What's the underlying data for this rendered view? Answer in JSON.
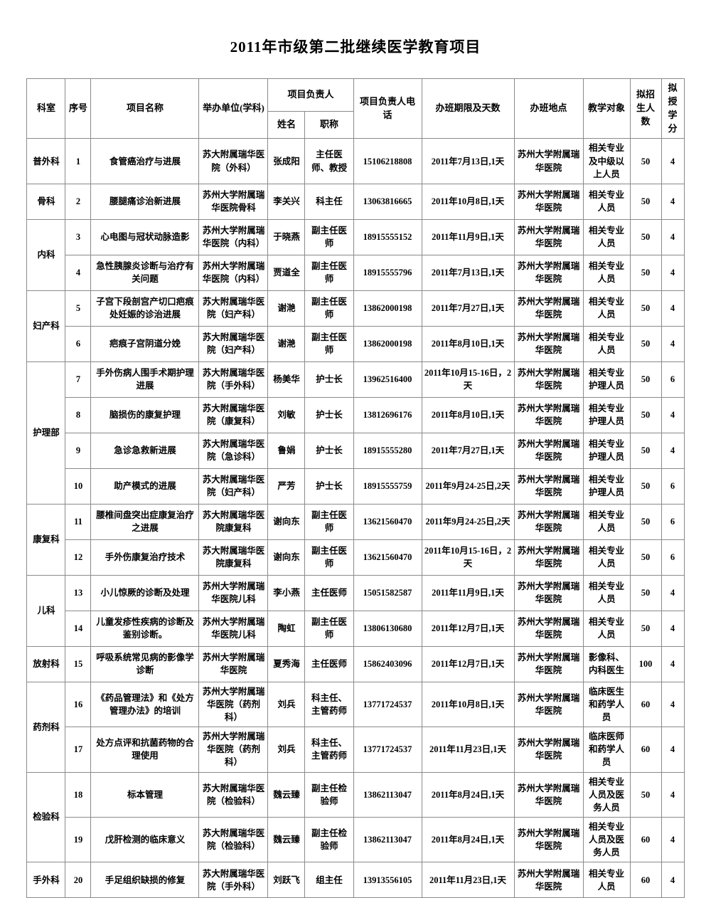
{
  "title": "2011年市级第二批继续医学教育项目",
  "table": {
    "header": {
      "dept": "科室",
      "num": "序号",
      "project": "项目名称",
      "organizer": "举办单位(学科)",
      "leader_group": "项目负责人",
      "leader_name": "姓名",
      "leader_title": "职称",
      "phone": "项目负责人电话",
      "schedule": "办班期限及天数",
      "location": "办班地点",
      "audience": "教学对象",
      "enrollment": "拟招生人数",
      "credits": "拟授学分"
    },
    "rows": [
      {
        "dept": "普外科",
        "dept_rowspan": 1,
        "num": "1",
        "project": "食管癌治疗与进展",
        "organizer": "苏大附属瑞华医院（外科）",
        "name": "张成阳",
        "job_title": "主任医师、教授",
        "phone": "15106218808",
        "schedule": "2011年7月13日,1天",
        "location": "苏州大学附属瑞华医院",
        "audience": "相关专业及中级以上人员",
        "enrollment": "50",
        "credits": "4"
      },
      {
        "dept": "骨科",
        "dept_rowspan": 1,
        "num": "2",
        "project": "腰腿痛诊治新进展",
        "organizer": "苏州大学附属瑞华医院骨科",
        "name": "李关兴",
        "job_title": "科主任",
        "phone": "13063816665",
        "schedule": "2011年10月8日,1天",
        "location": "苏州大学附属瑞华医院",
        "audience": "相关专业人员",
        "enrollment": "50",
        "credits": "4"
      },
      {
        "dept": "内科",
        "dept_rowspan": 2,
        "num": "3",
        "project": "心电图与冠状动脉造影",
        "organizer": "苏州大学附属瑞华医院（内科）",
        "name": "于晓燕",
        "job_title": "副主任医师",
        "phone": "18915555152",
        "schedule": "2011年11月9日,1天",
        "location": "苏州大学附属瑞华医院",
        "audience": "相关专业人员",
        "enrollment": "50",
        "credits": "4"
      },
      {
        "dept": null,
        "num": "4",
        "project": "急性胰腺炎诊断与治疗有关问题",
        "organizer": "苏州大学附属瑞华医院（内科）",
        "name": "贾道全",
        "job_title": "副主任医师",
        "phone": "18915555796",
        "schedule": "2011年7月13日,1天",
        "location": "苏州大学附属瑞华医院",
        "audience": "相关专业人员",
        "enrollment": "50",
        "credits": "4"
      },
      {
        "dept": "妇产科",
        "dept_rowspan": 2,
        "num": "5",
        "project": "子宫下段剖宫产切口疤痕处妊娠的诊治进展",
        "organizer": "苏大附属瑞华医院（妇产科）",
        "name": "谢滟",
        "job_title": "副主任医师",
        "phone": "13862000198",
        "schedule": "2011年7月27日,1天",
        "location": "苏州大学附属瑞华医院",
        "audience": "相关专业人员",
        "enrollment": "50",
        "credits": "4"
      },
      {
        "dept": null,
        "num": "6",
        "project": "疤痕子宫阴道分娩",
        "organizer": "苏大附属瑞华医院（妇产科）",
        "name": "谢滟",
        "job_title": "副主任医师",
        "phone": "13862000198",
        "schedule": "2011年8月10日,1天",
        "location": "苏州大学附属瑞华医院",
        "audience": "相关专业人员",
        "enrollment": "50",
        "credits": "4"
      },
      {
        "dept": "护理部",
        "dept_rowspan": 4,
        "num": "7",
        "project": "手外伤病人围手术期护理进展",
        "organizer": "苏大附属瑞华医院（手外科）",
        "name": "杨美华",
        "job_title": "护士长",
        "phone": "13962516400",
        "schedule": "2011年10月15-16日，2天",
        "location": "苏州大学附属瑞华医院",
        "audience": "相关专业护理人员",
        "enrollment": "50",
        "credits": "6"
      },
      {
        "dept": null,
        "num": "8",
        "project": "脑损伤的康复护理",
        "organizer": "苏大附属瑞华医院（康复科）",
        "name": "刘敏",
        "job_title": "护士长",
        "phone": "13812696176",
        "schedule": "2011年8月10日,1天",
        "location": "苏州大学附属瑞华医院",
        "audience": "相关专业护理人员",
        "enrollment": "50",
        "credits": "4"
      },
      {
        "dept": null,
        "num": "9",
        "project": "急诊急救新进展",
        "organizer": "苏大附属瑞华医院（急诊科）",
        "name": "鲁娟",
        "job_title": "护士长",
        "phone": "18915555280",
        "schedule": "2011年7月27日,1天",
        "location": "苏州大学附属瑞华医院",
        "audience": "相关专业护理人员",
        "enrollment": "50",
        "credits": "4"
      },
      {
        "dept": null,
        "num": "10",
        "project": "助产模式的进展",
        "organizer": "苏大附属瑞华医院（妇产科）",
        "name": "严芳",
        "job_title": "护士长",
        "phone": "18915555759",
        "schedule": "2011年9月24-25日,2天",
        "location": "苏州大学附属瑞华医院",
        "audience": "相关专业护理人员",
        "enrollment": "50",
        "credits": "6"
      },
      {
        "dept": "康复科",
        "dept_rowspan": 2,
        "num": "11",
        "project": "腰椎间盘突出症康复治疗之进展",
        "organizer": "苏大附属瑞华医院康复科",
        "name": "谢向东",
        "job_title": "副主任医师",
        "phone": "13621560470",
        "schedule": "2011年9月24-25日,2天",
        "location": "苏州大学附属瑞华医院",
        "audience": "相关专业人员",
        "enrollment": "50",
        "credits": "6"
      },
      {
        "dept": null,
        "num": "12",
        "project": "手外伤康复治疗技术",
        "organizer": "苏大附属瑞华医院康复科",
        "name": "谢向东",
        "job_title": "副主任医师",
        "phone": "13621560470",
        "schedule": "2011年10月15-16日，2天",
        "location": "苏州大学附属瑞华医院",
        "audience": "相关专业人员",
        "enrollment": "50",
        "credits": "6"
      },
      {
        "dept": "儿科",
        "dept_rowspan": 2,
        "num": "13",
        "project": "小儿惊厥的诊断及处理",
        "organizer": "苏州大学附属瑞华医院儿科",
        "name": "李小燕",
        "job_title": "主任医师",
        "phone": "15051582587",
        "schedule": "2011年11月9日,1天",
        "location": "苏州大学附属瑞华医院",
        "audience": "相关专业人员",
        "enrollment": "50",
        "credits": "4"
      },
      {
        "dept": null,
        "num": "14",
        "project": "儿童发疹性疾病的诊断及鉴别诊断。",
        "organizer": "苏州大学附属瑞华医院儿科",
        "name": "陶虹",
        "job_title": "副主任医师",
        "phone": "13806130680",
        "schedule": "2011年12月7日,1天",
        "location": "苏州大学附属瑞华医院",
        "audience": "相关专业人员",
        "enrollment": "50",
        "credits": "4"
      },
      {
        "dept": "放射科",
        "dept_rowspan": 1,
        "num": "15",
        "project": "呼吸系统常见病的影像学诊断",
        "organizer": "苏州大学附属瑞华医院",
        "name": "夏秀海",
        "job_title": "主任医师",
        "phone": "15862403096",
        "schedule": "2011年12月7日,1天",
        "location": "苏州大学附属瑞华医院",
        "audience": "影像科、内科医生",
        "enrollment": "100",
        "credits": "4"
      },
      {
        "dept": "药剂科",
        "dept_rowspan": 2,
        "num": "16",
        "project": "《药品管理法》和《处方管理办法》的培训",
        "organizer": "苏州大学附属瑞华医院（药剂科）",
        "name": "刘兵",
        "job_title": "科主任、主管药师",
        "phone": "13771724537",
        "schedule": "2011年10月8日,1天",
        "location": "苏州大学附属瑞华医院",
        "audience": "临床医生和药学人员",
        "enrollment": "60",
        "credits": "4"
      },
      {
        "dept": null,
        "num": "17",
        "project": "处方点评和抗菌药物的合理使用",
        "organizer": "苏州大学附属瑞华医院（药剂科）",
        "name": "刘兵",
        "job_title": "科主任、主管药师",
        "phone": "13771724537",
        "schedule": "2011年11月23日,1天",
        "location": "苏州大学附属瑞华医院",
        "audience": "临床医师和药学人员",
        "enrollment": "60",
        "credits": "4"
      },
      {
        "dept": "检验科",
        "dept_rowspan": 2,
        "num": "18",
        "project": "标本管理",
        "organizer": "苏大附属瑞华医院（检验科）",
        "name": "魏云臻",
        "job_title": "副主任检验师",
        "phone": "13862113047",
        "schedule": "2011年8月24日,1天",
        "location": "苏州大学附属瑞华医院",
        "audience": "相关专业人员及医务人员",
        "enrollment": "50",
        "credits": "4"
      },
      {
        "dept": null,
        "num": "19",
        "project": "戊肝检测的临床意义",
        "organizer": "苏大附属瑞华医院（检验科）",
        "name": "魏云臻",
        "job_title": "副主任检验师",
        "phone": "13862113047",
        "schedule": "2011年8月24日,1天",
        "location": "苏州大学附属瑞华医院",
        "audience": "相关专业人员及医务人员",
        "enrollment": "60",
        "credits": "4"
      },
      {
        "dept": "手外科",
        "dept_rowspan": 1,
        "num": "20",
        "project": "手足组织缺损的修复",
        "organizer": "苏大附属瑞华医院（手外科）",
        "name": "刘跃飞",
        "job_title": "组主任",
        "phone": "13913556105",
        "schedule": "2011年11月23日,1天",
        "location": "苏州大学附属瑞华医院",
        "audience": "相关专业人员",
        "enrollment": "60",
        "credits": "4"
      }
    ]
  }
}
